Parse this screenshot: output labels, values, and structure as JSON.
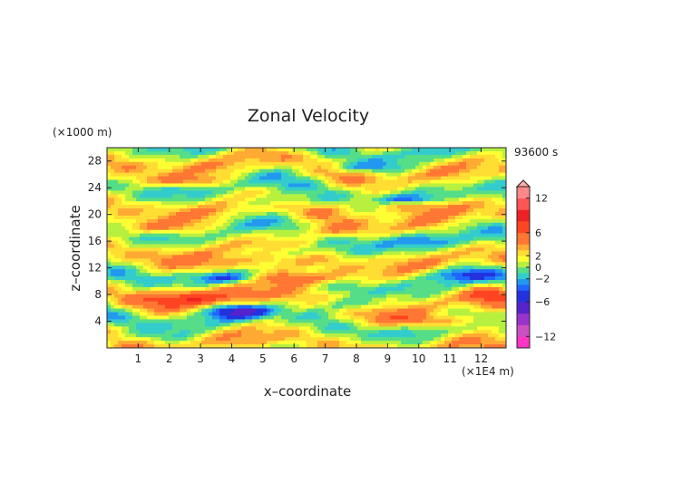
{
  "chart_data": {
    "type": "heatmap",
    "title": "Zonal Velocity",
    "xlabel": "x–coordinate",
    "ylabel": "z–coordinate",
    "x_unit": "(×1E4 m)",
    "y_unit": "(×1000 m)",
    "time_label": "93600 s",
    "xlim": [
      0,
      12.8
    ],
    "ylim": [
      0,
      30
    ],
    "x_ticks": [
      "1",
      "2",
      "3",
      "4",
      "5",
      "6",
      "7",
      "8",
      "9",
      "10",
      "11",
      "12"
    ],
    "y_ticks": [
      "4",
      "8",
      "12",
      "16",
      "20",
      "24",
      "28"
    ],
    "colorbar": {
      "ticks": [
        "12",
        "6",
        "2",
        "0",
        "−2",
        "−6",
        "−12"
      ],
      "tick_values": [
        12,
        6,
        2,
        0,
        -2,
        -6,
        -12
      ],
      "levels": [
        -14,
        -12,
        -10,
        -8,
        -6,
        -4,
        -3,
        -2,
        -1,
        0,
        1,
        2,
        3,
        4,
        6,
        8,
        10,
        12,
        14
      ],
      "colors": [
        "#ff33c4",
        "#cc4fc4",
        "#9933cc",
        "#5522cc",
        "#2233dd",
        "#1f66ff",
        "#2299ee",
        "#33cccc",
        "#55dd88",
        "#b8f040",
        "#ffff33",
        "#ffdd33",
        "#ffaa33",
        "#ff7733",
        "#ff4422",
        "#ee2222",
        "#ff5555",
        "#ff8888",
        "#ffaaaa"
      ]
    },
    "features": [
      {
        "x": 2.8,
        "z": 7.5,
        "w": 1.5,
        "h": 1.3,
        "v": 5
      },
      {
        "x": 6.3,
        "z": 10.5,
        "w": 1.6,
        "h": 1.1,
        "v": 5
      },
      {
        "x": 4.5,
        "z": 12.5,
        "w": 1.5,
        "h": 1.4,
        "v": 4
      },
      {
        "x": 1.6,
        "z": 18.0,
        "w": 1.4,
        "h": 1.1,
        "v": 4
      },
      {
        "x": 9.5,
        "z": 21.5,
        "w": 1.6,
        "h": 1.2,
        "v": 4
      },
      {
        "x": 10.6,
        "z": 4.0,
        "w": 2.0,
        "h": 1.0,
        "v": 4
      },
      {
        "x": 2.5,
        "z": 25.0,
        "w": 1.2,
        "h": 0.9,
        "v": 4
      },
      {
        "x": 7.1,
        "z": 17.5,
        "w": 1.3,
        "h": 1.0,
        "v": 3
      },
      {
        "x": 12.3,
        "z": 8.0,
        "w": 0.8,
        "h": 1.2,
        "v": 4
      },
      {
        "x": 4.3,
        "z": 5.5,
        "w": 1.0,
        "h": 1.0,
        "v": -6
      },
      {
        "x": 3.8,
        "z": 10.5,
        "w": 1.0,
        "h": 0.8,
        "v": -4
      },
      {
        "x": 9.6,
        "z": 22.2,
        "w": 0.9,
        "h": 0.7,
        "v": -5
      },
      {
        "x": 8.0,
        "z": 6.5,
        "w": 1.2,
        "h": 0.9,
        "v": -3
      },
      {
        "x": 5.5,
        "z": 22.0,
        "w": 1.5,
        "h": 1.0,
        "v": -3
      },
      {
        "x": 1.0,
        "z": 1.5,
        "w": 1.5,
        "h": 1.0,
        "v": -2
      },
      {
        "x": 11.5,
        "z": 11.0,
        "w": 1.5,
        "h": 1.0,
        "v": -3
      },
      {
        "x": 8.0,
        "z": 27.0,
        "w": 1.5,
        "h": 0.8,
        "v": -3
      },
      {
        "x": 6.0,
        "z": 14.5,
        "w": 1.4,
        "h": 1.0,
        "v": -3
      },
      {
        "x": 10.0,
        "z": 16.0,
        "w": 1.4,
        "h": 0.9,
        "v": -2
      }
    ]
  }
}
